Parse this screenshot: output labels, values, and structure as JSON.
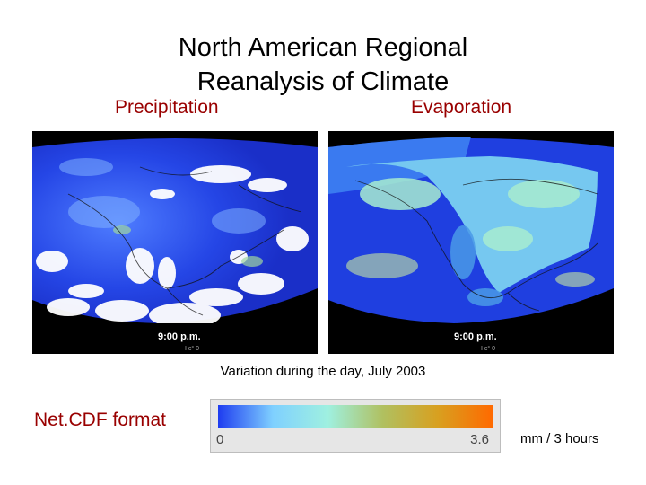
{
  "title": {
    "line1": "North American Regional",
    "line2": "Reanalysis of Climate"
  },
  "panels": [
    {
      "label": "Precipitation",
      "time": "9:00 p.m.",
      "footer": "I c° 0"
    },
    {
      "label": "Evaporation",
      "time": "9:00 p.m.",
      "footer": "I c° 0"
    }
  ],
  "caption": "Variation during the day, July 2003",
  "format_label": "Net.CDF format",
  "colorbar": {
    "min_label": "0",
    "max_label": "3.6",
    "units": "mm / 3 hours",
    "colors": [
      "#1e3cf0",
      "#7fd0ff",
      "#9ff0e0",
      "#b0c060",
      "#d8a020",
      "#ff6a00"
    ]
  }
}
